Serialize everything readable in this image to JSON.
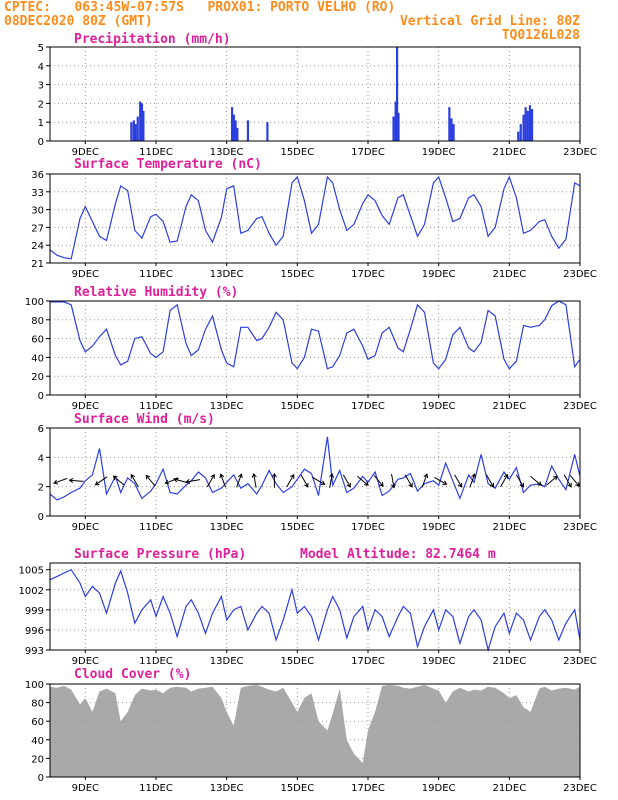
{
  "header": {
    "left_line1": "CPTEC:   063:45W-07:57S   PROX01: PORTO VELHO (RO)",
    "left_line2": "08DEC2020 80Z (GMT)",
    "right_line2": "Vertical Grid Line: 80Z",
    "right_line3": "TQ0126L028"
  },
  "colors": {
    "header": "#ff8c1a",
    "title": "#e0209a",
    "series": "#2b3fe0",
    "cloud": "#a9a9a9"
  },
  "x_ticks": [
    "9DEC",
    "11DEC",
    "13DEC",
    "15DEC",
    "17DEC",
    "19DEC",
    "21DEC",
    "23DEC"
  ],
  "chart_data": [
    {
      "type": "bar",
      "title": "Precipitation (mm/h)",
      "ylim": [
        0,
        5
      ],
      "yticks": [
        "0",
        "1",
        "2",
        "3",
        "4",
        "5"
      ],
      "x_range_days": [
        8.0,
        23.0
      ],
      "events": [
        {
          "day": 10.3,
          "value": 1.0
        },
        {
          "day": 10.37,
          "value": 1.1
        },
        {
          "day": 10.42,
          "value": 0.9
        },
        {
          "day": 10.48,
          "value": 1.3
        },
        {
          "day": 10.55,
          "value": 2.1
        },
        {
          "day": 10.6,
          "value": 2.0
        },
        {
          "day": 10.64,
          "value": 1.6
        },
        {
          "day": 13.15,
          "value": 1.8
        },
        {
          "day": 13.2,
          "value": 1.4
        },
        {
          "day": 13.25,
          "value": 1.1
        },
        {
          "day": 13.3,
          "value": 0.7
        },
        {
          "day": 13.6,
          "value": 1.1
        },
        {
          "day": 14.15,
          "value": 1.0
        },
        {
          "day": 17.72,
          "value": 1.3
        },
        {
          "day": 17.78,
          "value": 2.1
        },
        {
          "day": 17.82,
          "value": 5.0
        },
        {
          "day": 17.86,
          "value": 1.5
        },
        {
          "day": 19.3,
          "value": 1.8
        },
        {
          "day": 19.36,
          "value": 1.2
        },
        {
          "day": 19.42,
          "value": 0.9
        },
        {
          "day": 21.25,
          "value": 0.5
        },
        {
          "day": 21.32,
          "value": 0.9
        },
        {
          "day": 21.4,
          "value": 1.4
        },
        {
          "day": 21.46,
          "value": 1.8
        },
        {
          "day": 21.52,
          "value": 1.6
        },
        {
          "day": 21.58,
          "value": 1.9
        },
        {
          "day": 21.64,
          "value": 1.7
        }
      ]
    },
    {
      "type": "line",
      "title": "Surface Temperature (nC)",
      "ylim": [
        21,
        36
      ],
      "yticks": [
        "21",
        "24",
        "27",
        "30",
        "33",
        "36"
      ],
      "x_range_days": [
        8.0,
        23.0
      ],
      "x": [
        8.0,
        8.2,
        8.4,
        8.6,
        8.85,
        9.0,
        9.2,
        9.4,
        9.6,
        9.85,
        10.0,
        10.2,
        10.4,
        10.6,
        10.85,
        11.0,
        11.2,
        11.4,
        11.6,
        11.85,
        12.0,
        12.2,
        12.4,
        12.6,
        12.85,
        13.0,
        13.2,
        13.4,
        13.6,
        13.85,
        14.0,
        14.2,
        14.4,
        14.6,
        14.85,
        15.0,
        15.2,
        15.4,
        15.6,
        15.85,
        16.0,
        16.2,
        16.4,
        16.6,
        16.85,
        17.0,
        17.2,
        17.4,
        17.6,
        17.85,
        18.0,
        18.2,
        18.4,
        18.6,
        18.85,
        19.0,
        19.2,
        19.4,
        19.6,
        19.85,
        20.0,
        20.2,
        20.4,
        20.6,
        20.85,
        21.0,
        21.2,
        21.4,
        21.6,
        21.85,
        22.0,
        22.2,
        22.4,
        22.6,
        22.85,
        23.0
      ],
      "y": [
        23.2,
        22.3,
        21.9,
        21.7,
        28.5,
        30.5,
        28.0,
        25.5,
        24.8,
        31.0,
        34.0,
        33.2,
        26.5,
        25.2,
        28.8,
        29.2,
        28.0,
        24.5,
        24.7,
        30.5,
        32.5,
        31.5,
        26.5,
        24.5,
        28.7,
        33.5,
        34.0,
        26.0,
        26.5,
        28.5,
        28.8,
        26.0,
        24.0,
        25.5,
        34.5,
        35.5,
        31.5,
        26.0,
        27.5,
        35.5,
        34.5,
        30.0,
        26.5,
        27.5,
        31.0,
        32.5,
        31.5,
        29.0,
        27.5,
        32.0,
        32.5,
        29.0,
        25.5,
        27.5,
        34.5,
        35.5,
        32.0,
        28.0,
        28.5,
        32.0,
        32.5,
        30.5,
        25.5,
        27.0,
        33.5,
        35.5,
        32.0,
        26.0,
        26.5,
        28.0,
        28.3,
        25.5,
        23.5,
        25.0,
        34.5,
        34.0
      ]
    },
    {
      "type": "line",
      "title": "Relative Humidity (%)",
      "ylim": [
        0,
        100
      ],
      "yticks": [
        "0",
        "20",
        "40",
        "60",
        "80",
        "100"
      ],
      "x_range_days": [
        8.0,
        23.0
      ],
      "x": [
        8.0,
        8.2,
        8.4,
        8.6,
        8.85,
        9.0,
        9.2,
        9.4,
        9.6,
        9.85,
        10.0,
        10.2,
        10.4,
        10.6,
        10.85,
        11.0,
        11.2,
        11.4,
        11.6,
        11.85,
        12.0,
        12.2,
        12.4,
        12.6,
        12.85,
        13.0,
        13.2,
        13.4,
        13.6,
        13.85,
        14.0,
        14.2,
        14.4,
        14.6,
        14.85,
        15.0,
        15.2,
        15.4,
        15.6,
        15.85,
        16.0,
        16.2,
        16.4,
        16.6,
        16.85,
        17.0,
        17.2,
        17.4,
        17.6,
        17.85,
        18.0,
        18.2,
        18.4,
        18.6,
        18.85,
        19.0,
        19.2,
        19.4,
        19.6,
        19.85,
        20.0,
        20.2,
        20.4,
        20.6,
        20.85,
        21.0,
        21.2,
        21.4,
        21.6,
        21.85,
        22.0,
        22.2,
        22.4,
        22.6,
        22.85,
        23.0
      ],
      "y": [
        99,
        99,
        99,
        96,
        58,
        46,
        52,
        62,
        70,
        42,
        32,
        36,
        60,
        62,
        44,
        40,
        46,
        90,
        96,
        55,
        42,
        48,
        70,
        84,
        48,
        34,
        30,
        72,
        72,
        58,
        60,
        72,
        88,
        80,
        34,
        28,
        40,
        70,
        68,
        28,
        30,
        42,
        66,
        70,
        52,
        38,
        42,
        66,
        72,
        50,
        46,
        70,
        96,
        88,
        34,
        28,
        38,
        64,
        72,
        50,
        46,
        56,
        90,
        84,
        38,
        28,
        36,
        74,
        72,
        74,
        80,
        95,
        100,
        96,
        30,
        38
      ]
    },
    {
      "type": "line",
      "title": "Surface Wind (m/s)",
      "ylim": [
        0,
        6
      ],
      "yticks": [
        "0",
        "2",
        "4",
        "6"
      ],
      "x_range_days": [
        8.0,
        23.0
      ],
      "x": [
        8.0,
        8.2,
        8.4,
        8.6,
        8.85,
        9.0,
        9.2,
        9.4,
        9.6,
        9.85,
        10.0,
        10.2,
        10.4,
        10.6,
        10.85,
        11.0,
        11.2,
        11.4,
        11.6,
        11.85,
        12.0,
        12.2,
        12.4,
        12.6,
        12.85,
        13.0,
        13.2,
        13.4,
        13.6,
        13.85,
        14.0,
        14.2,
        14.4,
        14.6,
        14.85,
        15.0,
        15.2,
        15.4,
        15.6,
        15.85,
        16.0,
        16.2,
        16.4,
        16.6,
        16.85,
        17.0,
        17.2,
        17.4,
        17.6,
        17.85,
        18.0,
        18.2,
        18.4,
        18.6,
        18.85,
        19.0,
        19.2,
        19.4,
        19.6,
        19.85,
        20.0,
        20.2,
        20.4,
        20.6,
        20.85,
        21.0,
        21.2,
        21.4,
        21.6,
        21.85,
        22.0,
        22.2,
        22.4,
        22.6,
        22.85,
        23.0
      ],
      "y": [
        1.5,
        1.1,
        1.3,
        1.6,
        1.9,
        2.4,
        2.8,
        4.6,
        1.5,
        2.7,
        1.6,
        2.6,
        2.2,
        1.2,
        1.7,
        2.2,
        3.2,
        1.6,
        1.5,
        2.1,
        2.4,
        3.0,
        2.6,
        1.6,
        1.9,
        2.3,
        2.8,
        1.9,
        2.2,
        1.5,
        2.1,
        3.1,
        2.2,
        1.6,
        2.0,
        2.5,
        3.2,
        2.9,
        1.4,
        5.4,
        2.1,
        3.1,
        1.6,
        1.9,
        2.7,
        2.3,
        3.0,
        1.4,
        1.7,
        2.5,
        2.6,
        2.9,
        1.7,
        2.2,
        2.4,
        2.1,
        3.6,
        2.4,
        1.2,
        2.8,
        2.3,
        4.2,
        2.2,
        1.9,
        3.0,
        2.5,
        3.3,
        1.6,
        2.1,
        2.2,
        2.0,
        3.4,
        2.5,
        1.8,
        4.2,
        2.7
      ],
      "vectors": [
        {
          "day": 8.3,
          "angle": 200
        },
        {
          "day": 8.75,
          "angle": 175
        },
        {
          "day": 9.45,
          "angle": 215
        },
        {
          "day": 9.95,
          "angle": 140
        },
        {
          "day": 10.4,
          "angle": 120
        },
        {
          "day": 10.85,
          "angle": 130
        },
        {
          "day": 11.45,
          "angle": 200
        },
        {
          "day": 11.7,
          "angle": 165
        },
        {
          "day": 12.05,
          "angle": 190
        },
        {
          "day": 12.55,
          "angle": 60
        },
        {
          "day": 12.9,
          "angle": 110
        },
        {
          "day": 13.35,
          "angle": 70
        },
        {
          "day": 13.8,
          "angle": 100
        },
        {
          "day": 14.35,
          "angle": 90
        },
        {
          "day": 14.8,
          "angle": 60
        },
        {
          "day": 15.2,
          "angle": 300
        },
        {
          "day": 15.6,
          "angle": 330
        },
        {
          "day": 15.95,
          "angle": 80
        },
        {
          "day": 16.4,
          "angle": 300
        },
        {
          "day": 16.85,
          "angle": 320
        },
        {
          "day": 17.3,
          "angle": 310
        },
        {
          "day": 17.7,
          "angle": 280
        },
        {
          "day": 18.15,
          "angle": 300
        },
        {
          "day": 18.6,
          "angle": 70
        },
        {
          "day": 19.05,
          "angle": 330
        },
        {
          "day": 19.55,
          "angle": 300
        },
        {
          "day": 19.95,
          "angle": 70
        },
        {
          "day": 20.45,
          "angle": 300
        },
        {
          "day": 20.85,
          "angle": 60
        },
        {
          "day": 21.3,
          "angle": 300
        },
        {
          "day": 21.75,
          "angle": 320
        },
        {
          "day": 22.2,
          "angle": 40
        },
        {
          "day": 22.65,
          "angle": 300
        },
        {
          "day": 22.85,
          "angle": 310
        }
      ]
    },
    {
      "type": "line",
      "title": "Surface Pressure (hPa)",
      "annotation": "Model Altitude: 82.7464 m",
      "ylim": [
        993,
        1006
      ],
      "yticks": [
        "993",
        "996",
        "999",
        "1002",
        "1005"
      ],
      "x_range_days": [
        8.0,
        23.0
      ],
      "x": [
        8.0,
        8.2,
        8.4,
        8.6,
        8.85,
        9.0,
        9.2,
        9.4,
        9.6,
        9.85,
        10.0,
        10.2,
        10.4,
        10.6,
        10.85,
        11.0,
        11.2,
        11.4,
        11.6,
        11.85,
        12.0,
        12.2,
        12.4,
        12.6,
        12.85,
        13.0,
        13.2,
        13.4,
        13.6,
        13.85,
        14.0,
        14.2,
        14.4,
        14.6,
        14.85,
        15.0,
        15.2,
        15.4,
        15.6,
        15.85,
        16.0,
        16.2,
        16.4,
        16.6,
        16.85,
        17.0,
        17.2,
        17.4,
        17.6,
        17.85,
        18.0,
        18.2,
        18.4,
        18.6,
        18.85,
        19.0,
        19.2,
        19.4,
        19.6,
        19.85,
        20.0,
        20.2,
        20.4,
        20.6,
        20.85,
        21.0,
        21.2,
        21.4,
        21.6,
        21.85,
        22.0,
        22.2,
        22.4,
        22.6,
        22.85,
        23.0
      ],
      "y": [
        1003.5,
        1004.0,
        1004.5,
        1005.0,
        1003.0,
        1001.0,
        1002.5,
        1001.5,
        998.5,
        1003.0,
        1004.8,
        1001.5,
        997.0,
        999.0,
        1000.5,
        998.0,
        1001.0,
        998.5,
        995.0,
        999.5,
        1000.5,
        998.5,
        995.5,
        998.5,
        1001.0,
        997.5,
        999.0,
        999.5,
        996.0,
        998.5,
        999.5,
        998.5,
        994.5,
        997.5,
        1002.0,
        998.5,
        999.5,
        998.0,
        994.5,
        999.0,
        1001.0,
        999.0,
        994.8,
        998.0,
        999.5,
        996.0,
        999.0,
        998.0,
        995.0,
        998.0,
        999.5,
        998.5,
        993.5,
        996.5,
        999.0,
        996.0,
        999.0,
        998.0,
        994.0,
        998.0,
        999.0,
        997.5,
        993.0,
        996.5,
        998.5,
        995.5,
        998.5,
        997.5,
        994.5,
        998.0,
        999.0,
        997.5,
        994.5,
        997.0,
        999.0,
        994.5
      ]
    },
    {
      "type": "area",
      "title": "Cloud Cover (%)",
      "ylim": [
        0,
        100
      ],
      "yticks": [
        "0",
        "20",
        "40",
        "60",
        "80",
        "100"
      ],
      "x_range_days": [
        8.0,
        23.0
      ],
      "x": [
        8.0,
        8.2,
        8.4,
        8.6,
        8.85,
        9.0,
        9.2,
        9.4,
        9.6,
        9.85,
        10.0,
        10.2,
        10.4,
        10.6,
        10.85,
        11.0,
        11.2,
        11.4,
        11.6,
        11.85,
        12.0,
        12.2,
        12.4,
        12.6,
        12.85,
        13.0,
        13.2,
        13.4,
        13.6,
        13.85,
        14.0,
        14.2,
        14.4,
        14.6,
        14.85,
        15.0,
        15.2,
        15.4,
        15.6,
        15.85,
        16.0,
        16.2,
        16.4,
        16.6,
        16.85,
        17.0,
        17.2,
        17.4,
        17.6,
        17.85,
        18.0,
        18.2,
        18.4,
        18.6,
        18.85,
        19.0,
        19.2,
        19.4,
        19.6,
        19.85,
        20.0,
        20.2,
        20.4,
        20.6,
        20.85,
        21.0,
        21.2,
        21.4,
        21.6,
        21.85,
        22.0,
        22.2,
        22.4,
        22.6,
        22.85,
        23.0
      ],
      "y": [
        97,
        96,
        98,
        94,
        78,
        85,
        70,
        92,
        95,
        90,
        60,
        70,
        88,
        95,
        93,
        94,
        90,
        96,
        97,
        96,
        92,
        95,
        96,
        97,
        85,
        70,
        55,
        96,
        98,
        99,
        97,
        94,
        92,
        96,
        80,
        70,
        85,
        90,
        60,
        50,
        68,
        95,
        40,
        25,
        15,
        50,
        70,
        98,
        99,
        98,
        96,
        95,
        97,
        99,
        95,
        93,
        80,
        92,
        96,
        92,
        94,
        93,
        97,
        96,
        90,
        85,
        88,
        75,
        70,
        95,
        97,
        93,
        95,
        96,
        94,
        97
      ]
    }
  ]
}
